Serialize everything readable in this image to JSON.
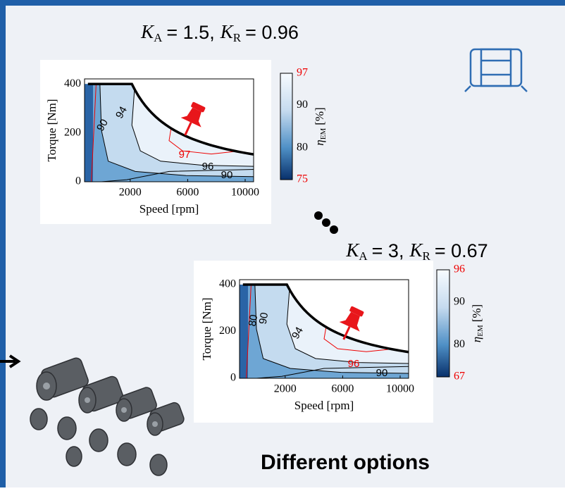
{
  "panels": [
    {
      "title": {
        "term1": {
          "symbol": "K",
          "subscript": "A",
          "value": "= 1.5,"
        },
        "term2": {
          "symbol": "K",
          "subscript": "R",
          "value": "= 0.96"
        }
      },
      "x_label": "Speed [rpm]",
      "y_label": "Torque [Nm]",
      "x_ticks": [
        "2000",
        "6000",
        "10000"
      ],
      "y_ticks": [
        "0",
        "200",
        "400"
      ],
      "colorbar_label": {
        "symbol": "η",
        "subscript": "EM",
        "unit": "[%]"
      },
      "colorbar_ticks": [
        "97",
        "90",
        "80",
        "75"
      ],
      "contour_labels": [
        "90",
        "94",
        "97",
        "96",
        "90"
      ]
    },
    {
      "title": {
        "term1": {
          "symbol": "K",
          "subscript": "A",
          "value": "= 3,"
        },
        "term2": {
          "symbol": "K",
          "subscript": "R",
          "value": "= 0.67"
        }
      },
      "x_label": "Speed [rpm]",
      "y_label": "Torque [Nm]",
      "x_ticks": [
        "2000",
        "6000",
        "10000"
      ],
      "y_ticks": [
        "0",
        "200",
        "400"
      ],
      "colorbar_label": {
        "symbol": "η",
        "subscript": "EM",
        "unit": "[%]"
      },
      "colorbar_ticks": [
        "96",
        "90",
        "80",
        "67"
      ],
      "contour_labels": [
        "80",
        "90",
        "94",
        "96",
        "90"
      ]
    }
  ],
  "caption": "Different options"
}
